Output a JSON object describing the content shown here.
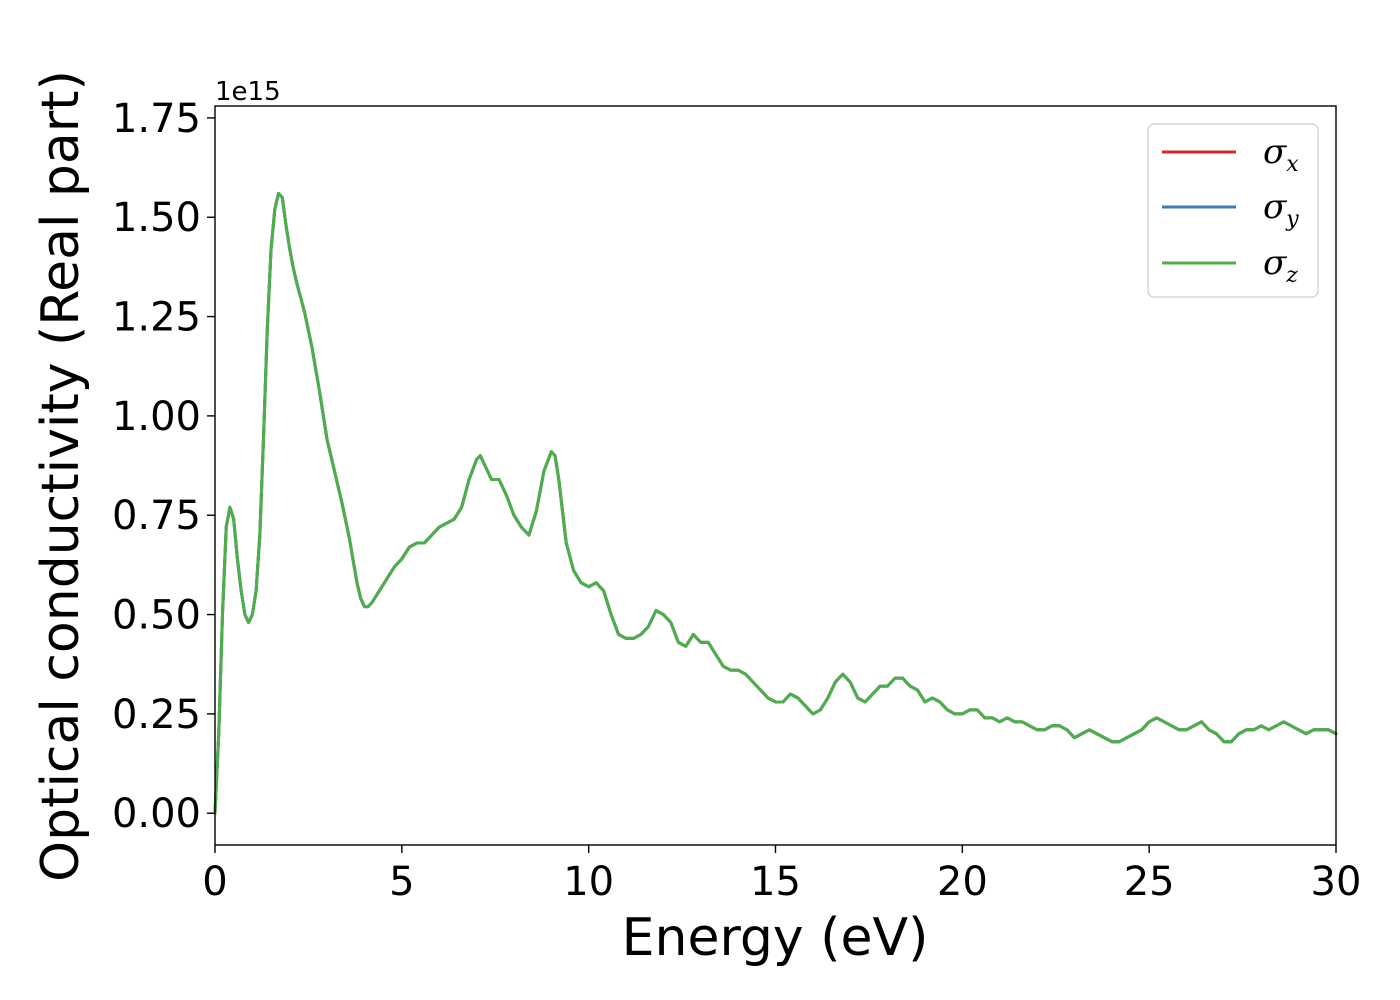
{
  "chart_data": {
    "type": "line",
    "xlabel": "Energy (eV)",
    "ylabel": "Optical conductivity (Real part)",
    "y_offset_label": "1e15",
    "xlim": [
      0,
      30
    ],
    "ylim": [
      -0.08,
      1.78
    ],
    "y_scale_multiplier": 1000000000000000.0,
    "grid": false,
    "legend_position": "top-right",
    "x_ticks": [
      0,
      5,
      10,
      15,
      20,
      25,
      30
    ],
    "x_tick_labels": [
      "0",
      "5",
      "10",
      "15",
      "20",
      "25",
      "30"
    ],
    "y_ticks": [
      0.0,
      0.25,
      0.5,
      0.75,
      1.0,
      1.25,
      1.5,
      1.75
    ],
    "y_tick_labels": [
      "0.00",
      "0.25",
      "0.50",
      "0.75",
      "1.00",
      "1.25",
      "1.50",
      "1.75"
    ],
    "series": [
      {
        "name_base": "σ",
        "name_sub": "x",
        "color": "#d62728",
        "points": "shared"
      },
      {
        "name_base": "σ",
        "name_sub": "y",
        "color": "#3a7bbf",
        "points": "shared"
      },
      {
        "name_base": "σ",
        "name_sub": "z",
        "color": "#4daf4a",
        "points": "shared"
      }
    ],
    "shared_points": [
      [
        0.0,
        0.0
      ],
      [
        0.1,
        0.2
      ],
      [
        0.2,
        0.5
      ],
      [
        0.3,
        0.72
      ],
      [
        0.4,
        0.77
      ],
      [
        0.5,
        0.74
      ],
      [
        0.6,
        0.64
      ],
      [
        0.7,
        0.56
      ],
      [
        0.8,
        0.5
      ],
      [
        0.9,
        0.48
      ],
      [
        1.0,
        0.5
      ],
      [
        1.1,
        0.56
      ],
      [
        1.2,
        0.7
      ],
      [
        1.3,
        0.95
      ],
      [
        1.4,
        1.22
      ],
      [
        1.5,
        1.42
      ],
      [
        1.6,
        1.52
      ],
      [
        1.7,
        1.56
      ],
      [
        1.8,
        1.55
      ],
      [
        1.9,
        1.48
      ],
      [
        2.0,
        1.42
      ],
      [
        2.1,
        1.37
      ],
      [
        2.2,
        1.33
      ],
      [
        2.4,
        1.26
      ],
      [
        2.6,
        1.17
      ],
      [
        2.8,
        1.06
      ],
      [
        3.0,
        0.94
      ],
      [
        3.2,
        0.86
      ],
      [
        3.4,
        0.78
      ],
      [
        3.6,
        0.69
      ],
      [
        3.8,
        0.58
      ],
      [
        3.9,
        0.54
      ],
      [
        4.0,
        0.52
      ],
      [
        4.1,
        0.52
      ],
      [
        4.2,
        0.53
      ],
      [
        4.4,
        0.56
      ],
      [
        4.6,
        0.59
      ],
      [
        4.8,
        0.62
      ],
      [
        5.0,
        0.64
      ],
      [
        5.2,
        0.67
      ],
      [
        5.4,
        0.68
      ],
      [
        5.6,
        0.68
      ],
      [
        5.8,
        0.7
      ],
      [
        6.0,
        0.72
      ],
      [
        6.2,
        0.73
      ],
      [
        6.4,
        0.74
      ],
      [
        6.6,
        0.77
      ],
      [
        6.8,
        0.84
      ],
      [
        7.0,
        0.89
      ],
      [
        7.1,
        0.9
      ],
      [
        7.2,
        0.88
      ],
      [
        7.4,
        0.84
      ],
      [
        7.6,
        0.84
      ],
      [
        7.8,
        0.8
      ],
      [
        8.0,
        0.75
      ],
      [
        8.2,
        0.72
      ],
      [
        8.4,
        0.7
      ],
      [
        8.6,
        0.76
      ],
      [
        8.8,
        0.86
      ],
      [
        9.0,
        0.91
      ],
      [
        9.1,
        0.9
      ],
      [
        9.2,
        0.84
      ],
      [
        9.4,
        0.68
      ],
      [
        9.6,
        0.61
      ],
      [
        9.8,
        0.58
      ],
      [
        10.0,
        0.57
      ],
      [
        10.2,
        0.58
      ],
      [
        10.4,
        0.56
      ],
      [
        10.6,
        0.5
      ],
      [
        10.8,
        0.45
      ],
      [
        11.0,
        0.44
      ],
      [
        11.2,
        0.44
      ],
      [
        11.4,
        0.45
      ],
      [
        11.6,
        0.47
      ],
      [
        11.8,
        0.51
      ],
      [
        12.0,
        0.5
      ],
      [
        12.2,
        0.48
      ],
      [
        12.4,
        0.43
      ],
      [
        12.6,
        0.42
      ],
      [
        12.8,
        0.45
      ],
      [
        13.0,
        0.43
      ],
      [
        13.2,
        0.43
      ],
      [
        13.4,
        0.4
      ],
      [
        13.6,
        0.37
      ],
      [
        13.8,
        0.36
      ],
      [
        14.0,
        0.36
      ],
      [
        14.2,
        0.35
      ],
      [
        14.4,
        0.33
      ],
      [
        14.6,
        0.31
      ],
      [
        14.8,
        0.29
      ],
      [
        15.0,
        0.28
      ],
      [
        15.2,
        0.28
      ],
      [
        15.4,
        0.3
      ],
      [
        15.6,
        0.29
      ],
      [
        15.8,
        0.27
      ],
      [
        16.0,
        0.25
      ],
      [
        16.2,
        0.26
      ],
      [
        16.4,
        0.29
      ],
      [
        16.6,
        0.33
      ],
      [
        16.8,
        0.35
      ],
      [
        17.0,
        0.33
      ],
      [
        17.2,
        0.29
      ],
      [
        17.4,
        0.28
      ],
      [
        17.6,
        0.3
      ],
      [
        17.8,
        0.32
      ],
      [
        18.0,
        0.32
      ],
      [
        18.2,
        0.34
      ],
      [
        18.4,
        0.34
      ],
      [
        18.6,
        0.32
      ],
      [
        18.8,
        0.31
      ],
      [
        19.0,
        0.28
      ],
      [
        19.2,
        0.29
      ],
      [
        19.4,
        0.28
      ],
      [
        19.6,
        0.26
      ],
      [
        19.8,
        0.25
      ],
      [
        20.0,
        0.25
      ],
      [
        20.2,
        0.26
      ],
      [
        20.4,
        0.26
      ],
      [
        20.6,
        0.24
      ],
      [
        20.8,
        0.24
      ],
      [
        21.0,
        0.23
      ],
      [
        21.2,
        0.24
      ],
      [
        21.4,
        0.23
      ],
      [
        21.6,
        0.23
      ],
      [
        21.8,
        0.22
      ],
      [
        22.0,
        0.21
      ],
      [
        22.2,
        0.21
      ],
      [
        22.4,
        0.22
      ],
      [
        22.6,
        0.22
      ],
      [
        22.8,
        0.21
      ],
      [
        23.0,
        0.19
      ],
      [
        23.2,
        0.2
      ],
      [
        23.4,
        0.21
      ],
      [
        23.6,
        0.2
      ],
      [
        23.8,
        0.19
      ],
      [
        24.0,
        0.18
      ],
      [
        24.2,
        0.18
      ],
      [
        24.4,
        0.19
      ],
      [
        24.6,
        0.2
      ],
      [
        24.8,
        0.21
      ],
      [
        25.0,
        0.23
      ],
      [
        25.2,
        0.24
      ],
      [
        25.4,
        0.23
      ],
      [
        25.6,
        0.22
      ],
      [
        25.8,
        0.21
      ],
      [
        26.0,
        0.21
      ],
      [
        26.2,
        0.22
      ],
      [
        26.4,
        0.23
      ],
      [
        26.6,
        0.21
      ],
      [
        26.8,
        0.2
      ],
      [
        27.0,
        0.18
      ],
      [
        27.2,
        0.18
      ],
      [
        27.4,
        0.2
      ],
      [
        27.6,
        0.21
      ],
      [
        27.8,
        0.21
      ],
      [
        28.0,
        0.22
      ],
      [
        28.2,
        0.21
      ],
      [
        28.4,
        0.22
      ],
      [
        28.6,
        0.23
      ],
      [
        28.8,
        0.22
      ],
      [
        29.0,
        0.21
      ],
      [
        29.2,
        0.2
      ],
      [
        29.4,
        0.21
      ],
      [
        29.6,
        0.21
      ],
      [
        29.8,
        0.21
      ],
      [
        30.0,
        0.2
      ]
    ]
  }
}
